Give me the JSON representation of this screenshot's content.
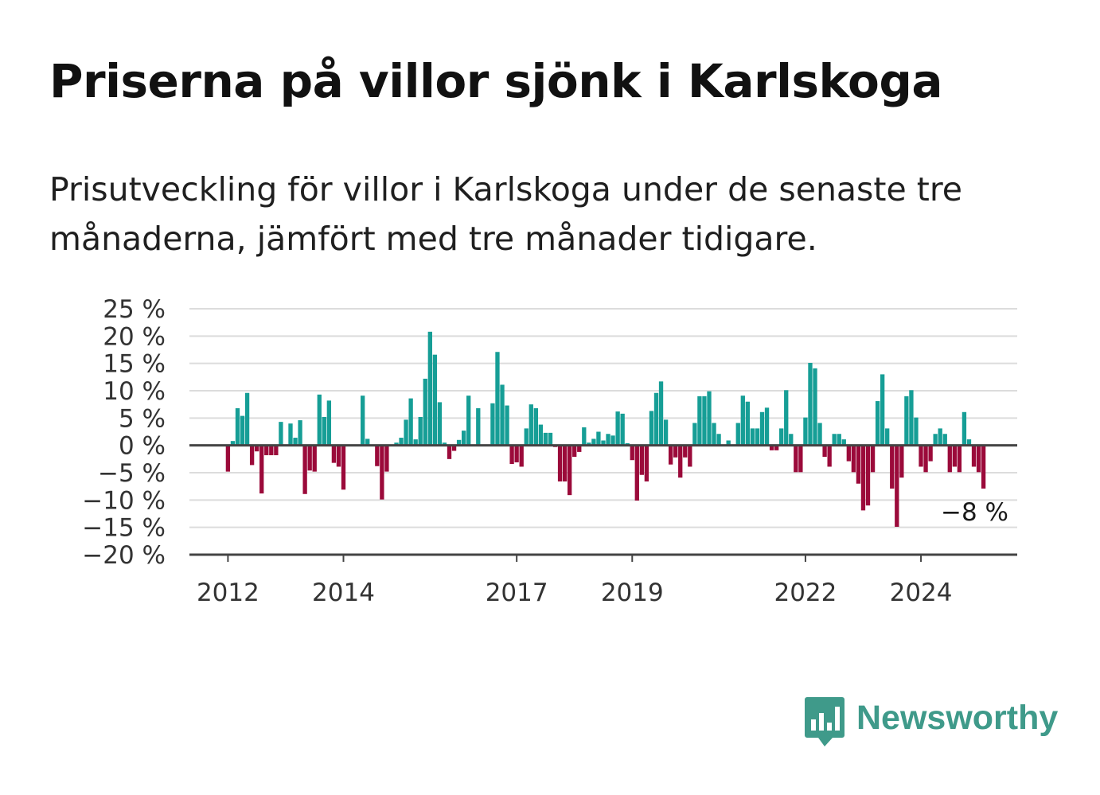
{
  "title": "Priserna på villor sjönk i Karlskoga",
  "subtitle": "Prisutveckling för villor i Karlskoga under de senaste tre månaderna, jämfört med tre månader tidigare.",
  "brand": {
    "name": "Newsworthy",
    "icon": "newsworthy-logo-icon"
  },
  "colors": {
    "positive": "#169e96",
    "negative": "#9b0a3a",
    "grid": "#dcdcdc",
    "axis": "#444444",
    "text": "#333333"
  },
  "chart_data": {
    "type": "bar",
    "y_tick_labels": [
      "25 %",
      "20 %",
      "15 %",
      "10 %",
      "5 %",
      "0 %",
      "−5 %",
      "−10 %",
      "−15 %",
      "−20 %"
    ],
    "y_ticks": [
      25,
      20,
      15,
      10,
      5,
      0,
      -5,
      -10,
      -15,
      -20
    ],
    "ylim": [
      -20,
      25
    ],
    "x_tick_labels": [
      "2012",
      "2014",
      "2017",
      "2019",
      "2022",
      "2024"
    ],
    "x_ticks": [
      2012,
      2014,
      2017,
      2019,
      2022,
      2024
    ],
    "xlim": [
      2011.333,
      2025.667
    ],
    "x_start": 2012.0,
    "x_step": 0.08333,
    "grid": true,
    "last_value_label": "−8 %",
    "values": [
      -4.8,
      0.8,
      6.8,
      5.4,
      9.6,
      -3.6,
      -1.1,
      -8.8,
      -1.8,
      -1.8,
      -1.8,
      4.3,
      0,
      4.0,
      1.4,
      4.6,
      -8.9,
      -4.6,
      -4.8,
      9.3,
      5.2,
      8.2,
      -3.2,
      -3.9,
      -8.1,
      0,
      0,
      0,
      9.1,
      1.2,
      0,
      -3.8,
      -9.9,
      -4.8,
      0,
      0.5,
      1.4,
      4.7,
      8.6,
      1.1,
      5.2,
      12.2,
      20.8,
      16.6,
      7.9,
      0.5,
      -2.5,
      -1.0,
      1.0,
      2.7,
      9.1,
      0,
      6.8,
      0,
      0,
      7.7,
      17.1,
      11.1,
      7.3,
      -3.4,
      -3.1,
      -3.9,
      3.1,
      7.5,
      6.8,
      3.8,
      2.3,
      2.3,
      -0.3,
      -6.6,
      -6.6,
      -9.1,
      -2.1,
      -1.2,
      3.3,
      0.5,
      1.2,
      2.5,
      0.9,
      2.1,
      1.8,
      6.2,
      5.8,
      0.4,
      -2.7,
      -10.1,
      -5.4,
      -6.6,
      6.3,
      9.6,
      11.7,
      4.7,
      -3.5,
      -2.2,
      -5.9,
      -2.2,
      -3.9,
      4.1,
      9.0,
      9.0,
      9.9,
      4.1,
      2.1,
      0,
      0.9,
      0,
      4.1,
      9.1,
      8.0,
      3.1,
      3.1,
      6.1,
      6.9,
      -0.9,
      -0.9,
      3.1,
      10.1,
      2.1,
      -4.9,
      -4.9,
      5.1,
      15.1,
      14.1,
      4.1,
      -2.1,
      -3.9,
      2.1,
      2.1,
      1.1,
      -2.9,
      -4.9,
      -7.0,
      -11.9,
      -11.0,
      -4.9,
      8.1,
      13.0,
      3.1,
      -7.9,
      -14.9,
      -5.9,
      9.0,
      10.1,
      5.1,
      -3.9,
      -4.9,
      -2.9,
      2.1,
      3.1,
      2.1,
      -4.9,
      -3.9,
      -4.9,
      6.1,
      1.1,
      -3.9,
      -4.9,
      -7.9
    ]
  }
}
